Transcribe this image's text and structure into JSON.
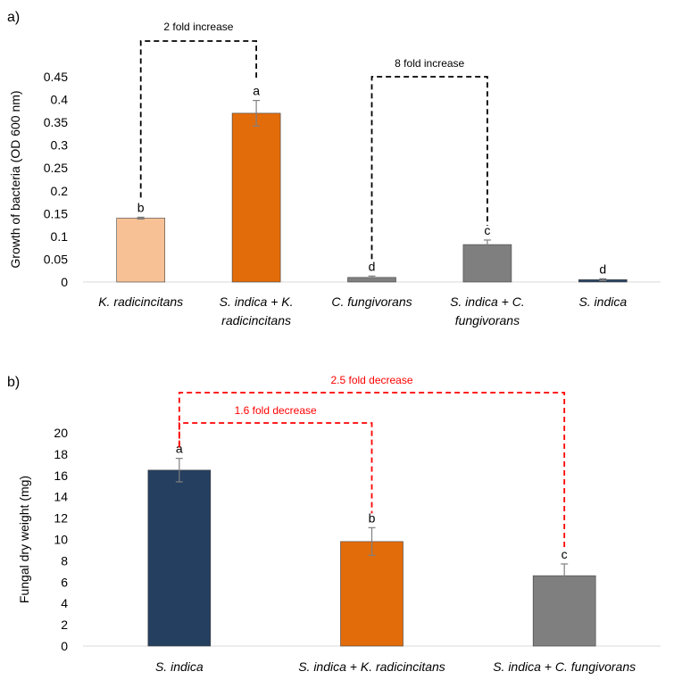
{
  "chart_data": [
    {
      "panel_label": "a)",
      "type": "bar",
      "ylabel": "Growth of bacteria (OD 600 nm)",
      "ylim": [
        0,
        0.45
      ],
      "yticks": [
        "0",
        "0.05",
        "0.1",
        "0.15",
        "0.2",
        "0.25",
        "0.3",
        "0.35",
        "0.4",
        "0.45"
      ],
      "grid": false,
      "categories": [
        [
          "K. radicincitans"
        ],
        [
          "S. indica + K.",
          "radicincitans"
        ],
        [
          "C. fungivorans"
        ],
        [
          "S. indica + C.",
          "fungivorans"
        ],
        [
          "S. indica"
        ]
      ],
      "values": [
        0.14,
        0.37,
        0.01,
        0.082,
        0.005
      ],
      "errors": [
        0.002,
        0.028,
        0.003,
        0.01,
        0.002
      ],
      "letters": [
        "b",
        "a",
        "d",
        "c",
        "d"
      ],
      "colors": [
        "#F8C195",
        "#E36C0A",
        "#7F7F7F",
        "#7F7F7F",
        "#243F60"
      ],
      "annotations": [
        {
          "text": "2 fold increase",
          "from": 0,
          "to": 1,
          "color": "#000000"
        },
        {
          "text": "8 fold increase",
          "from": 2,
          "to": 3,
          "color": "#000000"
        }
      ]
    },
    {
      "panel_label": "b)",
      "type": "bar",
      "ylabel": "Fungal dry weight (mg)",
      "ylim": [
        0,
        20
      ],
      "yticks": [
        "0",
        "2",
        "4",
        "6",
        "8",
        "10",
        "12",
        "14",
        "16",
        "18",
        "20"
      ],
      "grid": false,
      "categories": [
        [
          "S. indica"
        ],
        [
          "S. indica + K. radicincitans"
        ],
        [
          "S. indica + C. fungivorans"
        ]
      ],
      "values": [
        16.5,
        9.8,
        6.6
      ],
      "errors": [
        1.1,
        1.3,
        1.1
      ],
      "letters": [
        "a",
        "b",
        "c"
      ],
      "colors": [
        "#243F60",
        "#E36C0A",
        "#7F7F7F"
      ],
      "annotations": [
        {
          "text": "1.6 fold decrease",
          "from": 0,
          "to": 1,
          "color": "#FF0000"
        },
        {
          "text": "2.5 fold decrease",
          "from": 0,
          "to": 2,
          "color": "#FF0000"
        }
      ]
    }
  ]
}
